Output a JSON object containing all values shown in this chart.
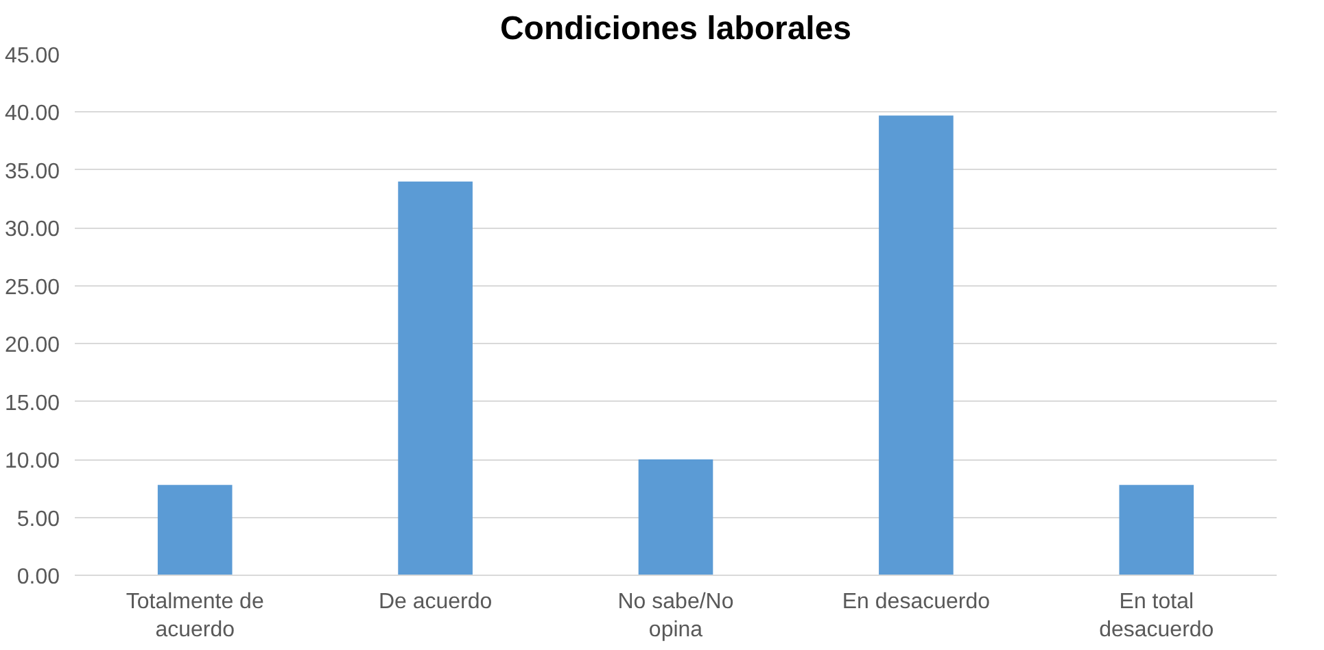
{
  "chart_data": {
    "type": "bar",
    "title": "Condiciones laborales",
    "categories": [
      "Totalmente de acuerdo",
      "De acuerdo",
      "No sabe/No opina",
      "En desacuerdo",
      "En total desacuerdo"
    ],
    "values": [
      7.8,
      34.0,
      10.0,
      39.7,
      7.8
    ],
    "color": "#5b9bd5",
    "ylim": [
      0,
      45
    ],
    "yticks": [
      {
        "value": 0,
        "label": "0.00"
      },
      {
        "value": 5,
        "label": "5.00"
      },
      {
        "value": 10,
        "label": "10.00"
      },
      {
        "value": 15,
        "label": "15.00"
      },
      {
        "value": 20,
        "label": "20.00"
      },
      {
        "value": 25,
        "label": "25.00"
      },
      {
        "value": 30,
        "label": "30.00"
      },
      {
        "value": 35,
        "label": "35.00"
      },
      {
        "value": 40,
        "label": "40.00"
      },
      {
        "value": 45,
        "label": "45.00"
      }
    ],
    "grid": "y"
  }
}
